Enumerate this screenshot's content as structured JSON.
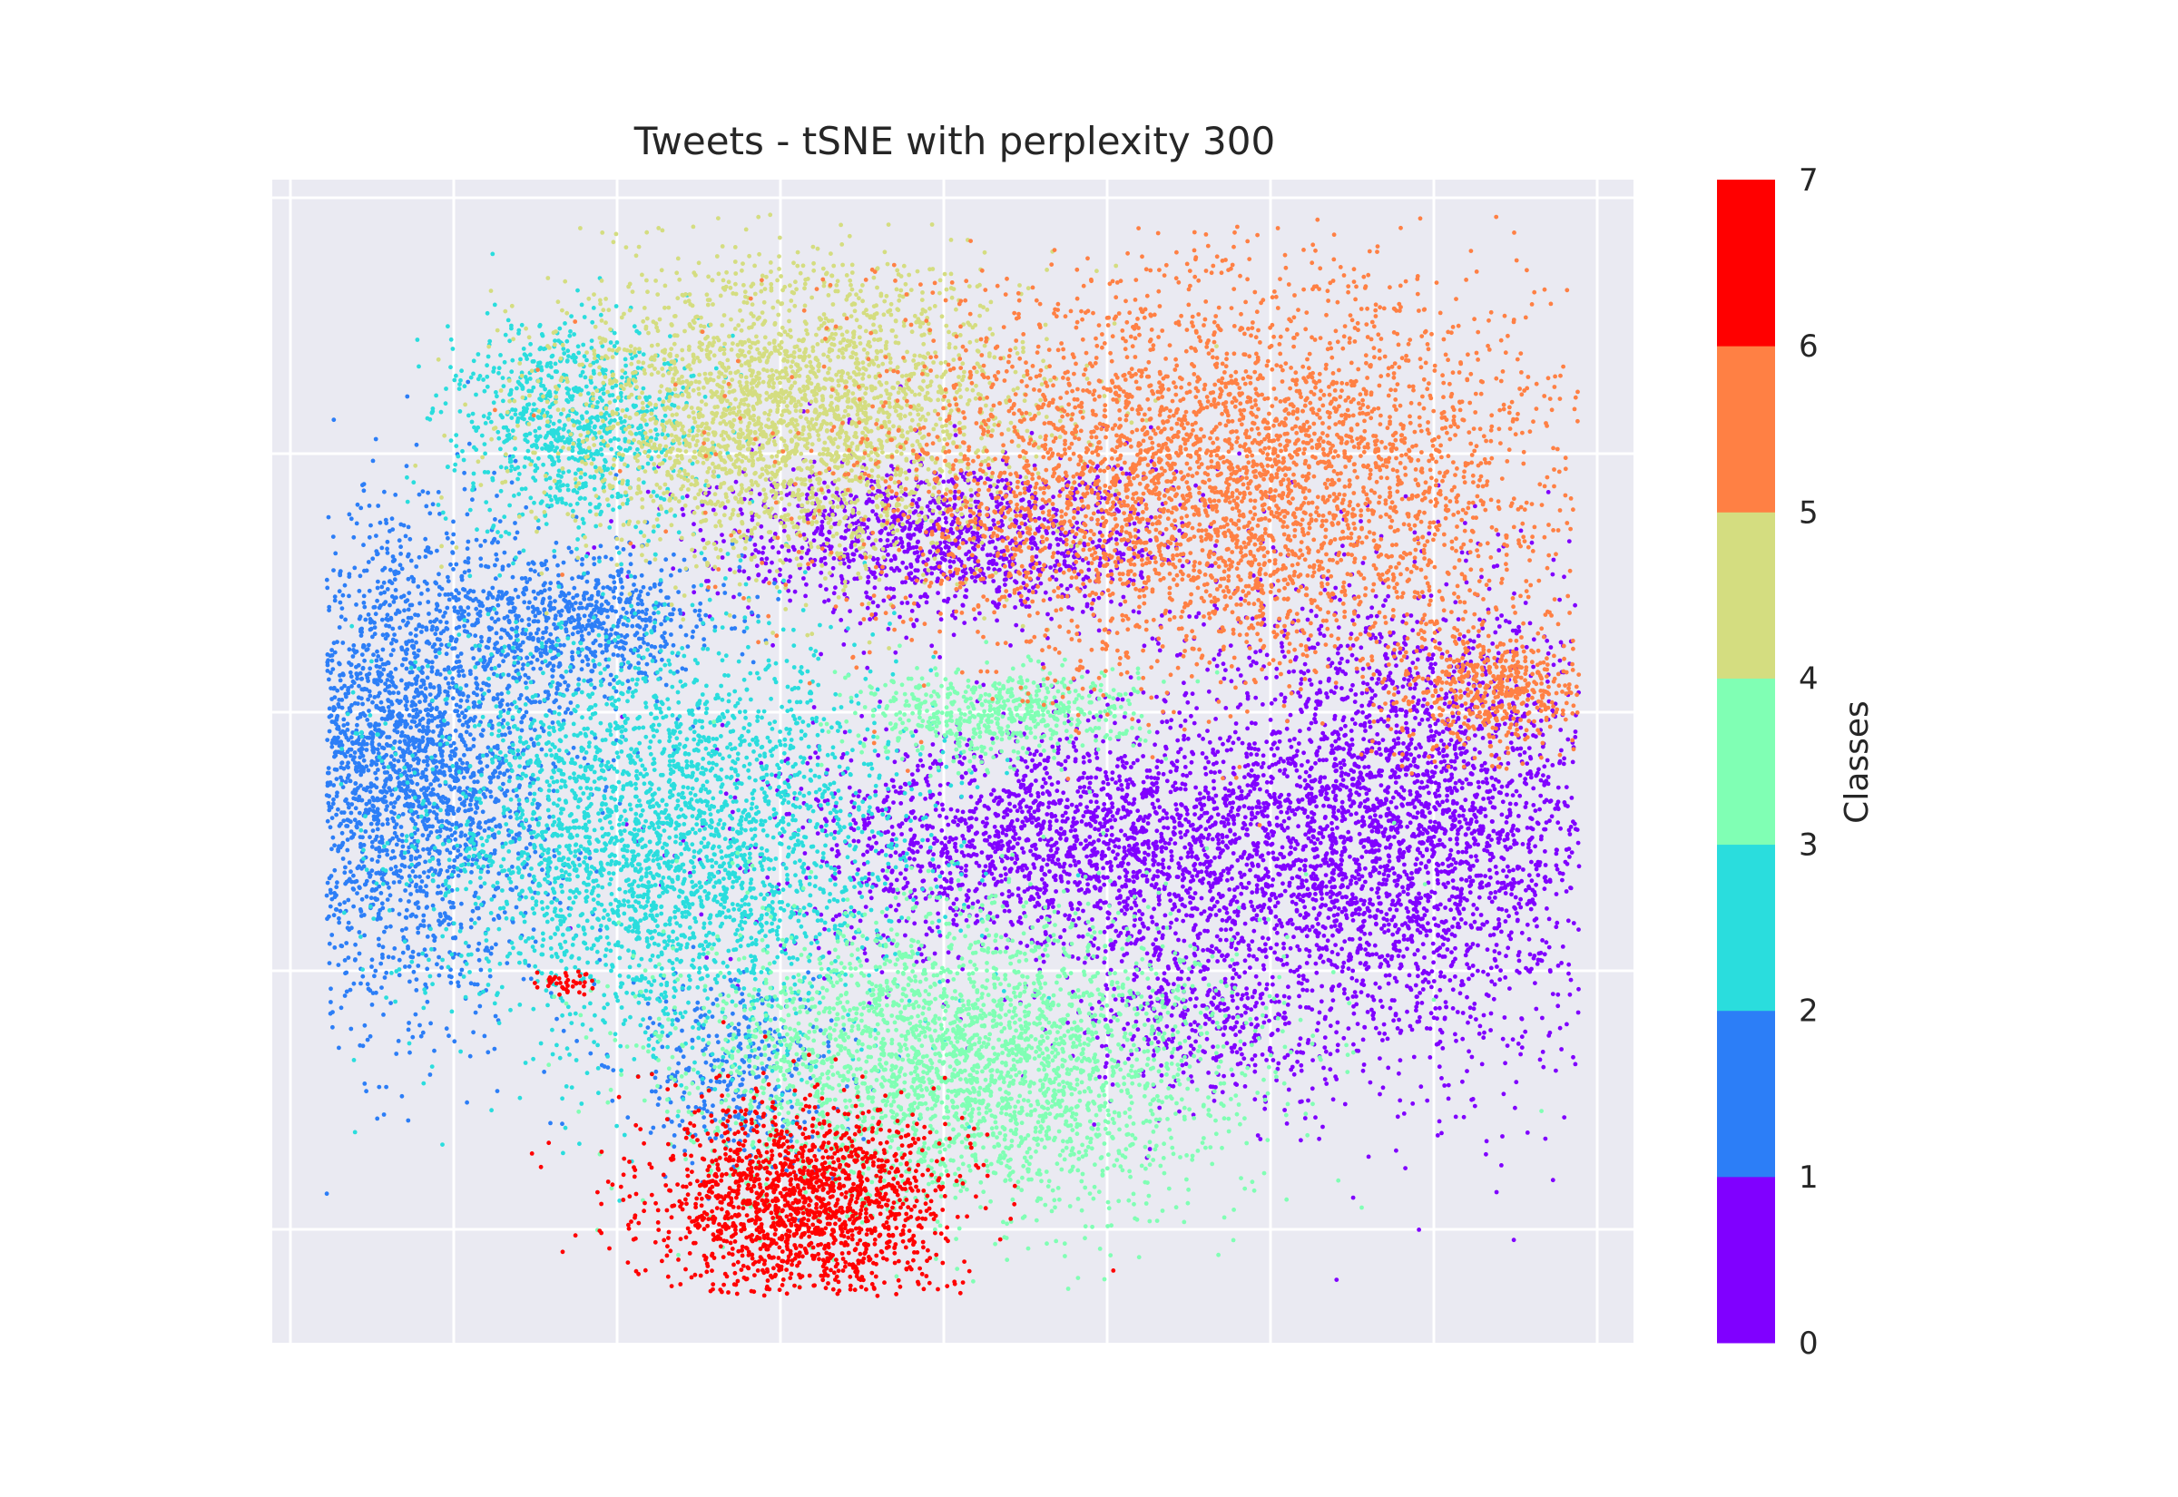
{
  "chart_data": {
    "type": "scatter",
    "title": "Tweets - tSNE with perplexity 300",
    "xlabel": "",
    "ylabel": "",
    "xlim": [
      0,
      1
    ],
    "ylim": [
      0,
      1
    ],
    "x_tick_labels_visible": false,
    "y_tick_labels_visible": false,
    "grid": true,
    "background": "#eaeaf2",
    "colorbar": {
      "label": "Classes",
      "ticks": [
        "0",
        "1",
        "2",
        "3",
        "4",
        "5",
        "6",
        "7"
      ],
      "colors": [
        "#8000ff",
        "#2c7ef7",
        "#2adddd",
        "#80ffb4",
        "#d4dd80",
        "#ff8044",
        "#ff0000"
      ],
      "position": "right"
    },
    "clusters": [
      {
        "class": 0,
        "color": "#8000ff",
        "x": 0.825,
        "y": 0.44,
        "sx": 0.085,
        "sy": 0.1,
        "n": 3400
      },
      {
        "class": 0,
        "color": "#8000ff",
        "x": 0.58,
        "y": 0.43,
        "sx": 0.1,
        "sy": 0.05,
        "n": 2000
      },
      {
        "class": 0,
        "color": "#8000ff",
        "x": 0.5,
        "y": 0.69,
        "sx": 0.09,
        "sy": 0.035,
        "n": 1300
      },
      {
        "class": 0,
        "color": "#8000ff",
        "x": 0.68,
        "y": 0.29,
        "sx": 0.04,
        "sy": 0.04,
        "n": 400
      },
      {
        "class": 1,
        "color": "#2c7ef7",
        "x": 0.1,
        "y": 0.5,
        "sx": 0.055,
        "sy": 0.1,
        "n": 2800
      },
      {
        "class": 1,
        "color": "#2c7ef7",
        "x": 0.23,
        "y": 0.62,
        "sx": 0.05,
        "sy": 0.03,
        "n": 700
      },
      {
        "class": 1,
        "color": "#2c7ef7",
        "x": 0.34,
        "y": 0.23,
        "sx": 0.04,
        "sy": 0.04,
        "n": 350
      },
      {
        "class": 2,
        "color": "#2adddd",
        "x": 0.29,
        "y": 0.43,
        "sx": 0.09,
        "sy": 0.09,
        "n": 3200
      },
      {
        "class": 2,
        "color": "#2adddd",
        "x": 0.22,
        "y": 0.79,
        "sx": 0.045,
        "sy": 0.045,
        "n": 900
      },
      {
        "class": 3,
        "color": "#80ffb4",
        "x": 0.51,
        "y": 0.24,
        "sx": 0.1,
        "sy": 0.065,
        "n": 3000
      },
      {
        "class": 3,
        "color": "#80ffb4",
        "x": 0.53,
        "y": 0.54,
        "sx": 0.05,
        "sy": 0.02,
        "n": 600
      },
      {
        "class": 4,
        "color": "#d4dd80",
        "x": 0.38,
        "y": 0.8,
        "sx": 0.085,
        "sy": 0.065,
        "n": 2800
      },
      {
        "class": 5,
        "color": "#ff8044",
        "x": 0.7,
        "y": 0.74,
        "sx": 0.13,
        "sy": 0.085,
        "n": 4200
      },
      {
        "class": 5,
        "color": "#ff8044",
        "x": 0.9,
        "y": 0.56,
        "sx": 0.035,
        "sy": 0.025,
        "n": 500
      },
      {
        "class": 6,
        "color": "#ff0000",
        "x": 0.39,
        "y": 0.12,
        "sx": 0.055,
        "sy": 0.045,
        "n": 1700
      },
      {
        "class": 6,
        "color": "#ff0000",
        "x": 0.215,
        "y": 0.31,
        "sx": 0.012,
        "sy": 0.005,
        "n": 40
      }
    ]
  }
}
